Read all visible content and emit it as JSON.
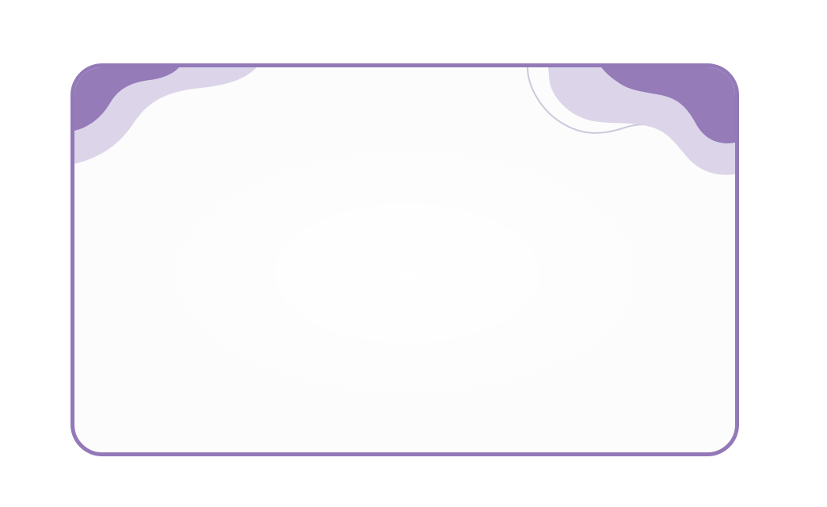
{
  "card": {
    "border_color": "#9379b8",
    "background_color": "#fcfcfc",
    "wave_primary_color": "#957bb8",
    "wave_secondary_color": "#dcd5ea",
    "wave_line_color": "#cfc8dc"
  }
}
